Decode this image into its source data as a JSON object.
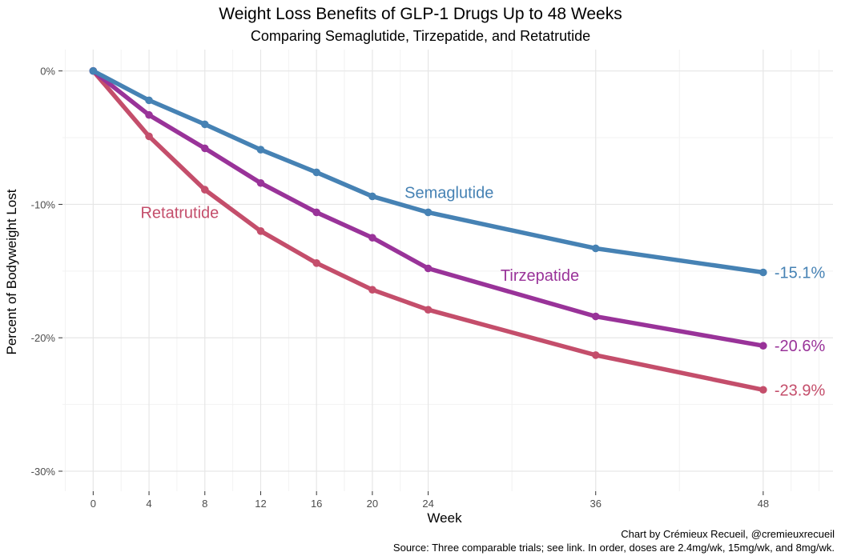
{
  "chart_data": {
    "type": "line",
    "title": "Weight Loss Benefits of GLP-1 Drugs Up to 48 Weeks",
    "subtitle": "Comparing Semaglutide, Tirzepatide, and Retatrutide",
    "xlabel": "Week",
    "ylabel": "Percent of Bodyweight Lost",
    "x_ticks": [
      0,
      4,
      8,
      12,
      16,
      20,
      24,
      36,
      48
    ],
    "x_tick_labels": [
      "0",
      "4",
      "8",
      "12",
      "16",
      "20",
      "24",
      "36",
      "48"
    ],
    "y_ticks": [
      0,
      -10,
      -20,
      -30
    ],
    "y_tick_labels": [
      "0%",
      "-10%",
      "-20%",
      "-30%"
    ],
    "xlim": [
      -2.2,
      53
    ],
    "ylim": [
      -31.5,
      1.6
    ],
    "grid": true,
    "series": [
      {
        "name": "Semaglutide",
        "color": "#4682b4",
        "x": [
          0,
          4,
          8,
          12,
          16,
          20,
          24,
          36,
          48
        ],
        "y": [
          0,
          -2.2,
          -4.0,
          -5.9,
          -7.6,
          -9.4,
          -10.6,
          -13.3,
          -15.1
        ],
        "end_label": "-15.1%",
        "label_x": 25.5,
        "label_y": -9.1
      },
      {
        "name": "Tirzepatide",
        "color": "#993399",
        "x": [
          0,
          4,
          8,
          12,
          16,
          20,
          24,
          36,
          48
        ],
        "y": [
          0,
          -3.3,
          -5.8,
          -8.4,
          -10.6,
          -12.5,
          -14.8,
          -18.4,
          -20.6
        ],
        "end_label": "-20.6%",
        "label_x": 32,
        "label_y": -15.3
      },
      {
        "name": "Retatrutide",
        "color": "#c44e6b",
        "x": [
          0,
          4,
          8,
          12,
          16,
          20,
          24,
          36,
          48
        ],
        "y": [
          0,
          -4.9,
          -8.9,
          -12.0,
          -14.4,
          -16.4,
          -17.9,
          -21.3,
          -23.9
        ],
        "end_label": "-23.9%",
        "label_x": 6.2,
        "label_y": -10.6
      }
    ]
  },
  "caption": {
    "line1": "Chart by Crémieux Recueil, @cremieuxrecueil",
    "line2": "Source: Three comparable trials; see link. In order, doses are 2.4mg/wk, 15mg/wk, and 8mg/wk."
  }
}
